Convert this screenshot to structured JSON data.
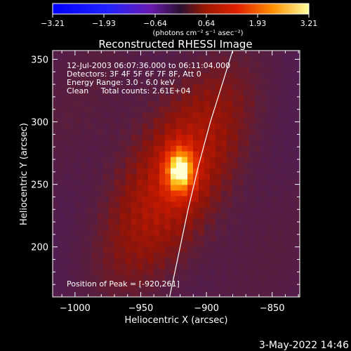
{
  "colorbar": {
    "tick_labels": [
      "−3.21",
      "−1.93",
      "−0.64",
      "0.64",
      "1.93",
      "3.21"
    ],
    "unit_label": "(photons cm⁻² s⁻¹ asec⁻²)"
  },
  "chart_data": {
    "type": "heatmap",
    "title": "Reconstructed RHESSI Image",
    "xlabel": "Heliocentric X (arcsec)",
    "ylabel": "Heliocentric Y (arcsec)",
    "xlim": [
      -1017,
      -829
    ],
    "ylim": [
      160,
      357
    ],
    "x_ticks": [
      -1000,
      -950,
      -900,
      -850
    ],
    "x_tick_labels": [
      "−1000",
      "−950",
      "−900",
      "−850"
    ],
    "y_ticks": [
      200,
      250,
      300,
      350
    ],
    "y_tick_labels": [
      "200",
      "250",
      "300",
      "350"
    ],
    "colorscale": {
      "min": -3.21,
      "max": 3.21
    },
    "peak": {
      "x": -920,
      "y": 261,
      "value": 3.21
    },
    "annotations": [
      "12-Jul-2003 06:07:36.000 to 06:11:04.000",
      "Detectors: 3F 4F 5F 6F 7F 8F, Att 0",
      "Energy Range: 3.0 - 6.0 keV",
      "Clean     Total counts: 2.61E+04",
      "Position of Peak = [-920,261]"
    ],
    "limb_curve": [
      [
        -928,
        160
      ],
      [
        -922,
        190
      ],
      [
        -914,
        230
      ],
      [
        -906,
        265
      ],
      [
        -897,
        300
      ],
      [
        -888,
        330
      ],
      [
        -880,
        357
      ]
    ]
  },
  "footer": {
    "timestamp": "3-May-2022 14:46"
  }
}
